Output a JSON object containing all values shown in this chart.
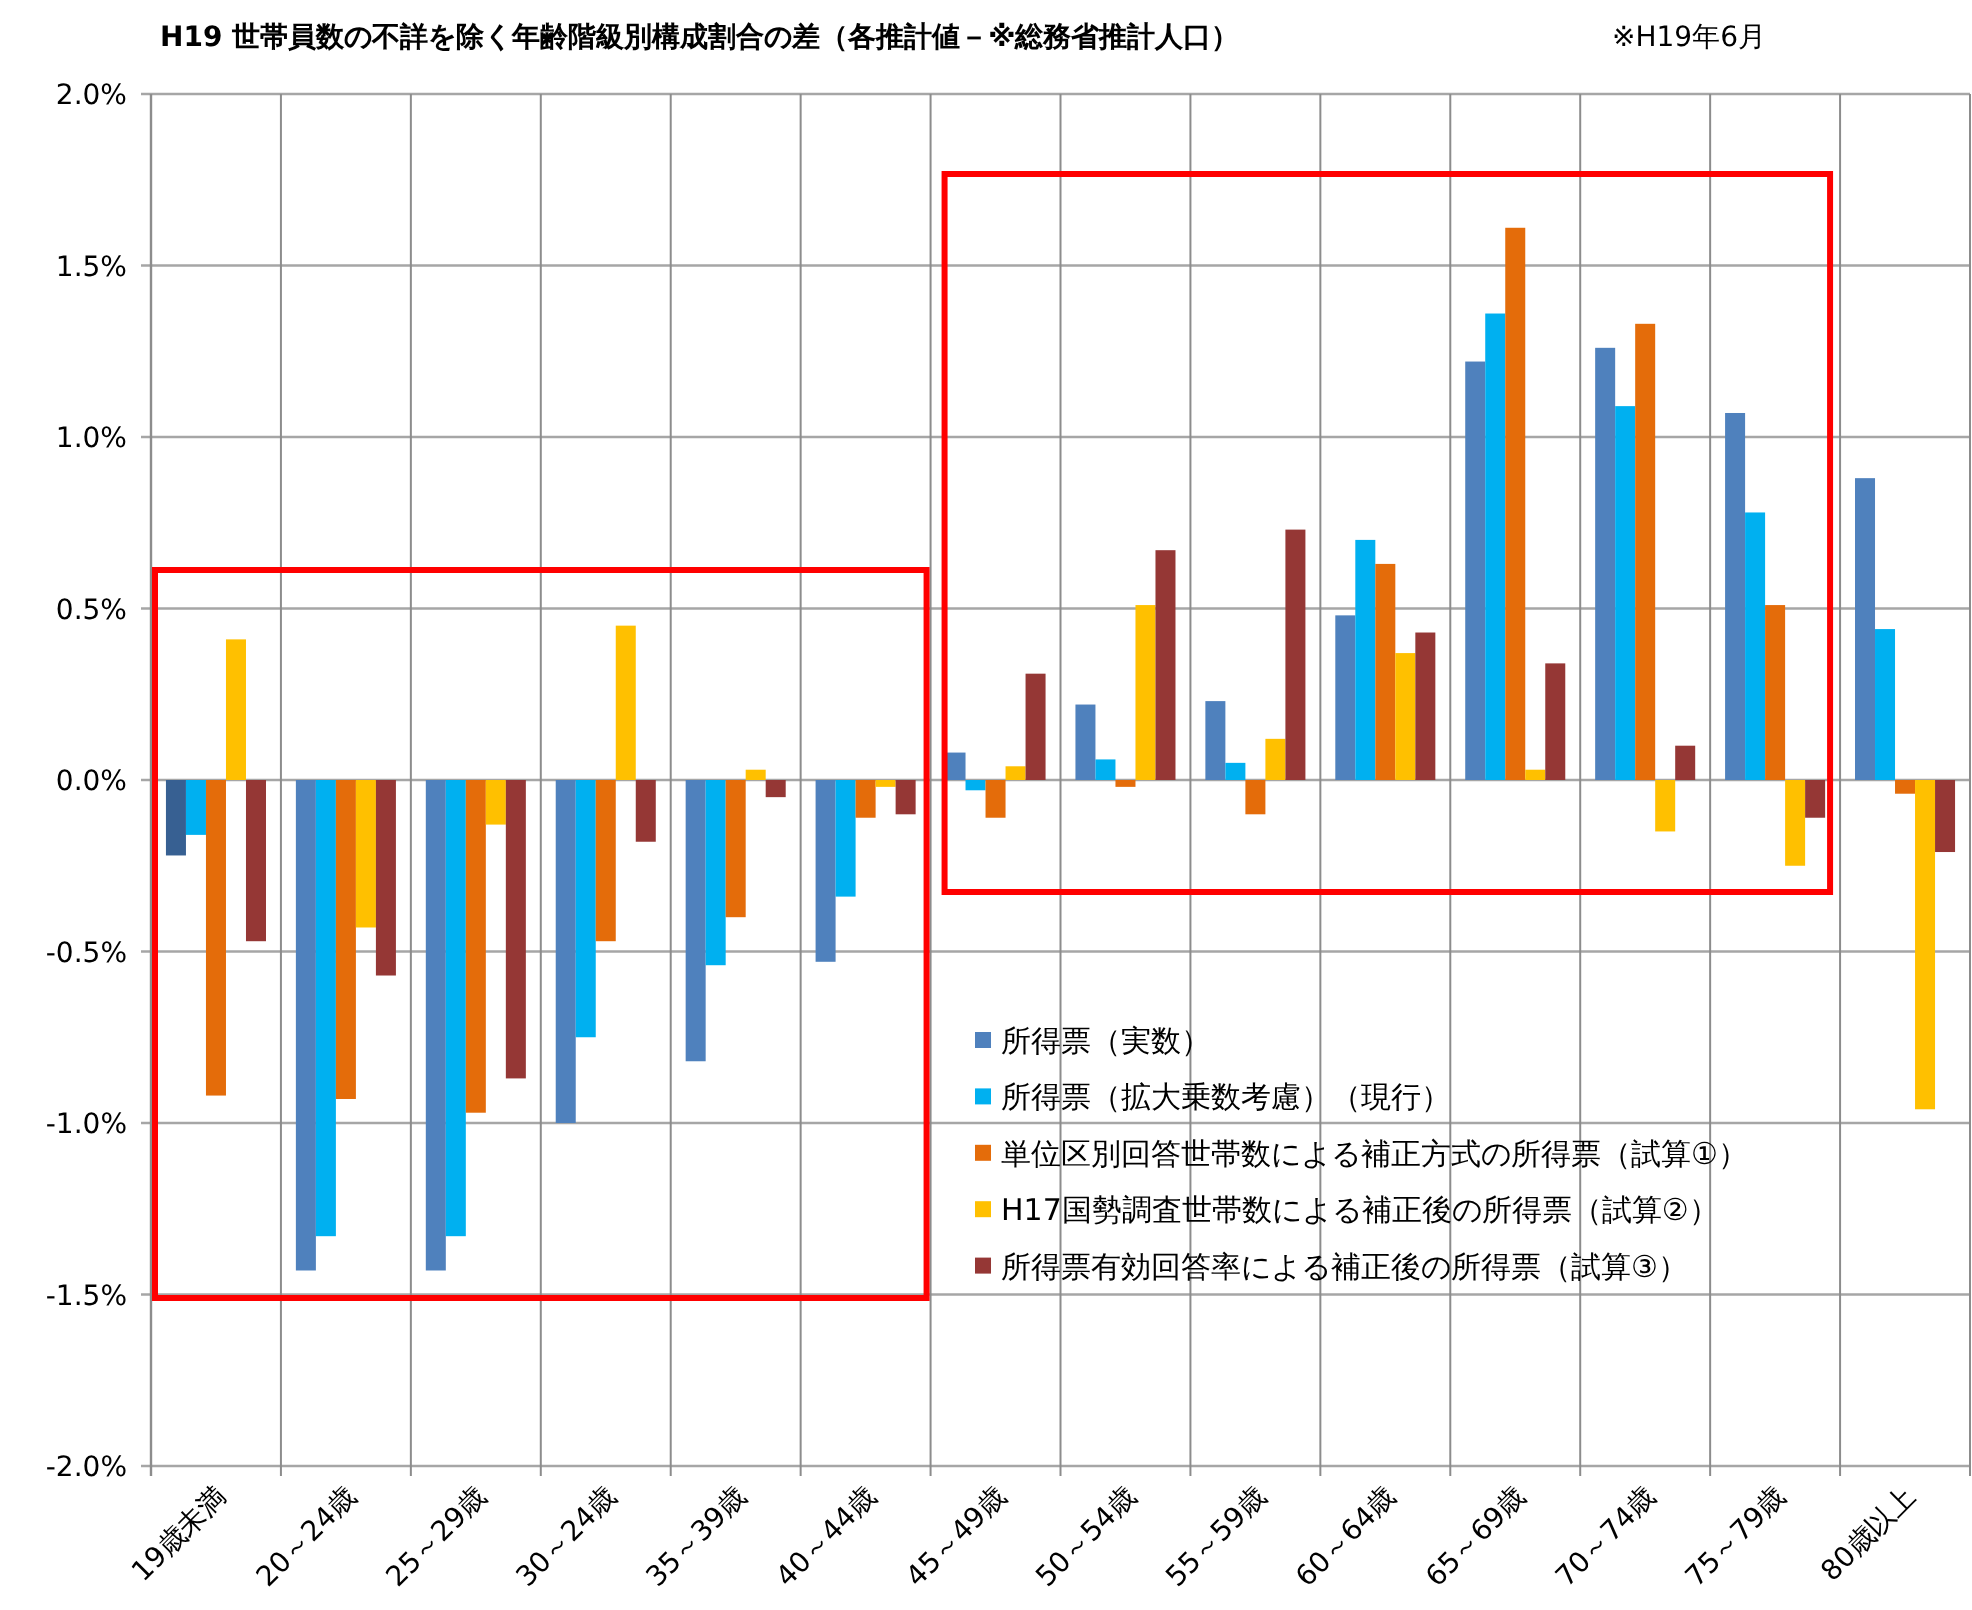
{
  "chart_data": {
    "type": "bar",
    "title": "H19 世帯員数の不詳を除く年齢階級別構成割合の差（各推計値－※総務省推計人口）",
    "annotations": [
      "※H19年6月"
    ],
    "categories": [
      "19歳未満",
      "20～24歳",
      "25～29歳",
      "30～24歳",
      "35～39歳",
      "40～44歳",
      "45～49歳",
      "50～54歳",
      "55～59歳",
      "60～64歳",
      "65～69歳",
      "70～74歳",
      "75～79歳",
      "80歳以上"
    ],
    "series": [
      {
        "name": "所得票（実数）",
        "color": "#4f81bd",
        "colors": [
          "#376092",
          "#4f81bd",
          "#4f81bd",
          "#4f81bd",
          "#4f81bd",
          "#4f81bd",
          "#4f81bd",
          "#4f81bd",
          "#4f81bd",
          "#4f81bd",
          "#4f81bd",
          "#4f81bd",
          "#4f81bd",
          "#4f81bd"
        ],
        "values": [
          -0.22,
          -1.43,
          -1.43,
          -1.0,
          -0.82,
          -0.53,
          0.08,
          0.22,
          0.23,
          0.48,
          1.22,
          1.26,
          1.07,
          0.88
        ]
      },
      {
        "name": "所得票（拡大乗数考慮）（現行）",
        "color": "#00b0f0",
        "values": [
          -0.16,
          -1.33,
          -1.33,
          -0.75,
          -0.54,
          -0.34,
          -0.03,
          0.06,
          0.05,
          0.7,
          1.36,
          1.09,
          0.78,
          0.44
        ]
      },
      {
        "name": "単位区別回答世帯数による補正方式の所得票（試算①）",
        "color": "#e46c0a",
        "values": [
          -0.92,
          -0.93,
          -0.97,
          -0.47,
          -0.4,
          -0.11,
          -0.11,
          -0.02,
          -0.1,
          0.63,
          1.61,
          1.33,
          0.51,
          -0.04
        ]
      },
      {
        "name": "H17国勢調査世帯数による補正後の所得票（試算②）",
        "color": "#ffc000",
        "values": [
          0.41,
          -0.43,
          -0.13,
          0.45,
          0.03,
          -0.02,
          0.04,
          0.51,
          0.12,
          0.37,
          0.03,
          -0.15,
          -0.25,
          -0.96
        ]
      },
      {
        "name": "所得票有効回答率による補正後の所得票（試算③）",
        "color": "#953735",
        "values": [
          -0.47,
          -0.57,
          -0.87,
          -0.18,
          -0.05,
          -0.1,
          0.31,
          0.67,
          0.73,
          0.43,
          0.34,
          0.1,
          -0.11,
          -0.21
        ]
      }
    ],
    "ylim": [
      -2.0,
      2.0
    ],
    "yticks": [
      {
        "value": -2.0,
        "label": "-2.0%"
      },
      {
        "value": -1.5,
        "label": "-1.5%"
      },
      {
        "value": -1.0,
        "label": "-1.0%"
      },
      {
        "value": -0.5,
        "label": "-0.5%"
      },
      {
        "value": 0.0,
        "label": "0.0%"
      },
      {
        "value": 0.5,
        "label": "0.5%"
      },
      {
        "value": 1.0,
        "label": "1.0%"
      },
      {
        "value": 1.5,
        "label": "1.5%"
      },
      {
        "value": 2.0,
        "label": "2.0%"
      }
    ],
    "grid": true,
    "legend": "bottom right"
  }
}
